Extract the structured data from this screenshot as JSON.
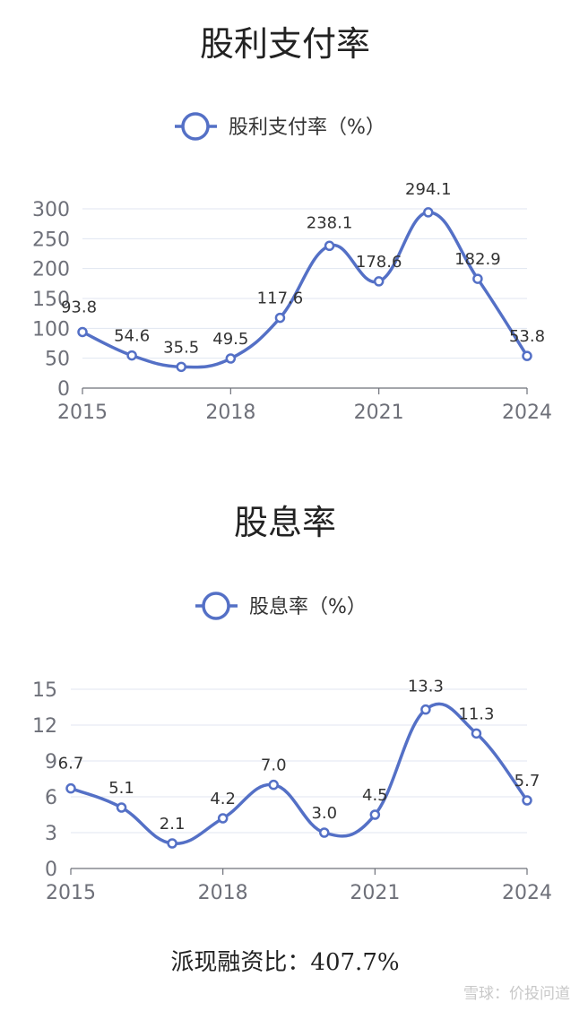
{
  "colors": {
    "series": "#5470c6",
    "grid": "#e0e6f1",
    "axis": "#6e7079"
  },
  "chart_data": [
    {
      "type": "line",
      "title": "股利支付率",
      "legend": "股利支付率（%）",
      "smooth": true,
      "x": [
        2015,
        2016,
        2017,
        2018,
        2019,
        2020,
        2021,
        2022,
        2023,
        2024
      ],
      "x_tick_labels": [
        "2015",
        "2018",
        "2021",
        "2024"
      ],
      "y_ticks": [
        0,
        50,
        100,
        150,
        200,
        250,
        300
      ],
      "ylim": [
        0,
        300
      ],
      "values": [
        93.8,
        54.6,
        35.5,
        49.5,
        117.6,
        238.1,
        178.6,
        294.1,
        182.9,
        53.8
      ],
      "labels": [
        "93.8",
        "54.6",
        "35.5",
        "49.5",
        "117.6",
        "238.1",
        "178.6",
        "294.1",
        "182.9",
        "53.8"
      ]
    },
    {
      "type": "line",
      "title": "股息率",
      "legend": "股息率（%）",
      "smooth": true,
      "x": [
        2015,
        2016,
        2017,
        2018,
        2019,
        2020,
        2021,
        2022,
        2023,
        2024
      ],
      "x_tick_labels": [
        "2015",
        "2018",
        "2021",
        "2024"
      ],
      "y_ticks": [
        0,
        3,
        6,
        9,
        12,
        15
      ],
      "ylim": [
        0,
        15
      ],
      "values": [
        6.7,
        5.1,
        2.1,
        4.2,
        7.0,
        3.0,
        4.5,
        13.3,
        11.3,
        5.7
      ],
      "labels": [
        "6.7",
        "5.1",
        "2.1",
        "4.2",
        "7.0",
        "3.0",
        "4.5",
        "13.3",
        "11.3",
        "5.7"
      ]
    }
  ],
  "footer": {
    "text": "派现融资比：407.7%"
  },
  "watermark": {
    "text": "雪球：价投问道"
  }
}
